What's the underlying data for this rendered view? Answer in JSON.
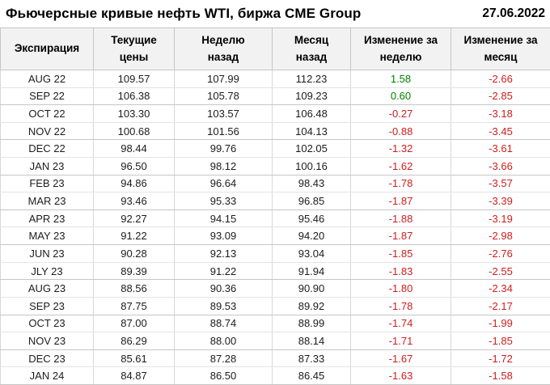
{
  "header": {
    "title": "Фьючерсные кривые нефть WTI, биржа CME Group",
    "date": "27.06.2022"
  },
  "table": {
    "columns": [
      "Экспирация",
      "Текущие\nцены",
      "Неделю\nназад",
      "Месяц\nназад",
      "Изменение за\nнеделю",
      "Изменение за\nмесяц"
    ],
    "rows": [
      {
        "expiration": "AUG 22",
        "current": "109.57",
        "week_ago": "107.99",
        "month_ago": "112.23",
        "week_change": "1.58",
        "month_change": "-2.66"
      },
      {
        "expiration": "SEP 22",
        "current": "106.38",
        "week_ago": "105.78",
        "month_ago": "109.23",
        "week_change": "0.60",
        "month_change": "-2.85"
      },
      {
        "expiration": "OCT 22",
        "current": "103.30",
        "week_ago": "103.57",
        "month_ago": "106.48",
        "week_change": "-0.27",
        "month_change": "-3.18"
      },
      {
        "expiration": "NOV 22",
        "current": "100.68",
        "week_ago": "101.56",
        "month_ago": "104.13",
        "week_change": "-0.88",
        "month_change": "-3.45"
      },
      {
        "expiration": "DEC 22",
        "current": "98.44",
        "week_ago": "99.76",
        "month_ago": "102.05",
        "week_change": "-1.32",
        "month_change": "-3.61"
      },
      {
        "expiration": "JAN 23",
        "current": "96.50",
        "week_ago": "98.12",
        "month_ago": "100.16",
        "week_change": "-1.62",
        "month_change": "-3.66"
      },
      {
        "expiration": "FEB 23",
        "current": "94.86",
        "week_ago": "96.64",
        "month_ago": "98.43",
        "week_change": "-1.78",
        "month_change": "-3.57"
      },
      {
        "expiration": "MAR 23",
        "current": "93.46",
        "week_ago": "95.33",
        "month_ago": "96.85",
        "week_change": "-1.87",
        "month_change": "-3.39"
      },
      {
        "expiration": "APR 23",
        "current": "92.27",
        "week_ago": "94.15",
        "month_ago": "95.46",
        "week_change": "-1.88",
        "month_change": "-3.19"
      },
      {
        "expiration": "MAY 23",
        "current": "91.22",
        "week_ago": "93.09",
        "month_ago": "94.20",
        "week_change": "-1.87",
        "month_change": "-2.98"
      },
      {
        "expiration": "JUN 23",
        "current": "90.28",
        "week_ago": "92.13",
        "month_ago": "93.04",
        "week_change": "-1.85",
        "month_change": "-2.76"
      },
      {
        "expiration": "JLY 23",
        "current": "89.39",
        "week_ago": "91.22",
        "month_ago": "91.94",
        "week_change": "-1.83",
        "month_change": "-2.55"
      },
      {
        "expiration": "AUG 23",
        "current": "88.56",
        "week_ago": "90.36",
        "month_ago": "90.90",
        "week_change": "-1.80",
        "month_change": "-2.34"
      },
      {
        "expiration": "SEP 23",
        "current": "87.75",
        "week_ago": "89.53",
        "month_ago": "89.92",
        "week_change": "-1.78",
        "month_change": "-2.17"
      },
      {
        "expiration": "OCT 23",
        "current": "87.00",
        "week_ago": "88.74",
        "month_ago": "88.99",
        "week_change": "-1.74",
        "month_change": "-1.99"
      },
      {
        "expiration": "NOV 23",
        "current": "86.29",
        "week_ago": "88.00",
        "month_ago": "88.14",
        "week_change": "-1.71",
        "month_change": "-1.85"
      },
      {
        "expiration": "DEC 23",
        "current": "85.61",
        "week_ago": "87.28",
        "month_ago": "87.33",
        "week_change": "-1.67",
        "month_change": "-1.72"
      },
      {
        "expiration": "JAN 24",
        "current": "84.87",
        "week_ago": "86.50",
        "month_ago": "86.45",
        "week_change": "-1.63",
        "month_change": "-1.58"
      }
    ]
  },
  "colors": {
    "positive_change": "#008000",
    "negative_change": "#cf1d1d",
    "header_background": "#f2f2f2",
    "grid_border": "#c6c6c6"
  },
  "chart_data": {
    "type": "table",
    "title": "Фьючерсные кривые нефть WTI, биржа CME Group",
    "date": "27.06.2022",
    "columns": [
      "Экспирация",
      "Текущие цены",
      "Неделю назад",
      "Месяц назад",
      "Изменение за неделю",
      "Изменение за месяц"
    ],
    "categories": [
      "AUG 22",
      "SEP 22",
      "OCT 22",
      "NOV 22",
      "DEC 22",
      "JAN 23",
      "FEB 23",
      "MAR 23",
      "APR 23",
      "MAY 23",
      "JUN 23",
      "JLY 23",
      "AUG 23",
      "SEP 23",
      "OCT 23",
      "NOV 23",
      "DEC 23",
      "JAN 24"
    ],
    "series": [
      {
        "name": "Текущие цены",
        "values": [
          109.57,
          106.38,
          103.3,
          100.68,
          98.44,
          96.5,
          94.86,
          93.46,
          92.27,
          91.22,
          90.28,
          89.39,
          88.56,
          87.75,
          87.0,
          86.29,
          85.61,
          84.87
        ]
      },
      {
        "name": "Неделю назад",
        "values": [
          107.99,
          105.78,
          103.57,
          101.56,
          99.76,
          98.12,
          96.64,
          95.33,
          94.15,
          93.09,
          92.13,
          91.22,
          90.36,
          89.53,
          88.74,
          88.0,
          87.28,
          86.5
        ]
      },
      {
        "name": "Месяц назад",
        "values": [
          112.23,
          109.23,
          106.48,
          104.13,
          102.05,
          100.16,
          98.43,
          96.85,
          95.46,
          94.2,
          93.04,
          91.94,
          90.9,
          89.92,
          88.99,
          88.14,
          87.33,
          86.45
        ]
      },
      {
        "name": "Изменение за неделю",
        "values": [
          1.58,
          0.6,
          -0.27,
          -0.88,
          -1.32,
          -1.62,
          -1.78,
          -1.87,
          -1.88,
          -1.87,
          -1.85,
          -1.83,
          -1.8,
          -1.78,
          -1.74,
          -1.71,
          -1.67,
          -1.63
        ]
      },
      {
        "name": "Изменение за месяц",
        "values": [
          -2.66,
          -2.85,
          -3.18,
          -3.45,
          -3.61,
          -3.66,
          -3.57,
          -3.39,
          -3.19,
          -2.98,
          -2.76,
          -2.55,
          -2.34,
          -2.17,
          -1.99,
          -1.85,
          -1.72,
          -1.58
        ]
      }
    ]
  }
}
